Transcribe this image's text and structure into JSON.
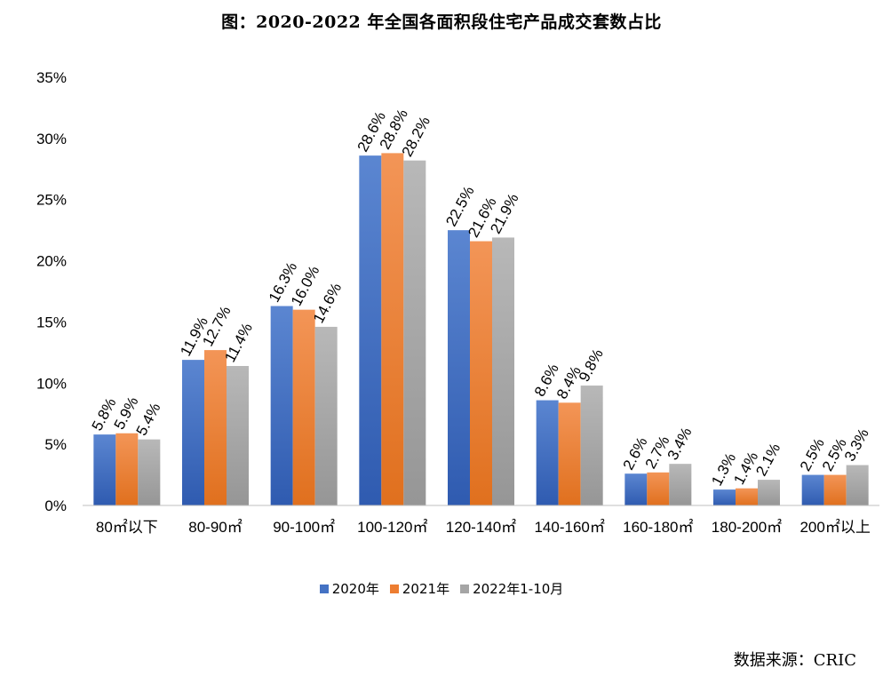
{
  "title": "图：2020-2022 年全国各面积段住宅产品成交套数占比",
  "source": "数据来源：CRIC",
  "chart_data": {
    "type": "bar",
    "categories": [
      "80㎡以下",
      "80-90㎡",
      "90-100㎡",
      "100-120㎡",
      "120-140㎡",
      "140-160㎡",
      "160-180㎡",
      "180-200㎡",
      "200㎡以上"
    ],
    "series": [
      {
        "name": "2020年",
        "color": "#4472C4",
        "values": [
          5.8,
          11.9,
          16.3,
          28.6,
          22.5,
          8.6,
          2.6,
          1.3,
          2.5
        ]
      },
      {
        "name": "2021年",
        "color": "#ED7D31",
        "values": [
          5.9,
          12.7,
          16.0,
          28.8,
          21.6,
          8.4,
          2.7,
          1.4,
          2.5
        ]
      },
      {
        "name": "2022年1-10月",
        "color": "#A5A5A5",
        "values": [
          5.4,
          11.4,
          14.6,
          28.2,
          21.9,
          9.8,
          3.4,
          2.1,
          3.3
        ]
      }
    ],
    "yticks": [
      "0%",
      "5%",
      "10%",
      "15%",
      "20%",
      "25%",
      "30%",
      "35%"
    ],
    "ylim": [
      0,
      35
    ],
    "unit": "%",
    "legend_position": "bottom",
    "grid": false
  }
}
